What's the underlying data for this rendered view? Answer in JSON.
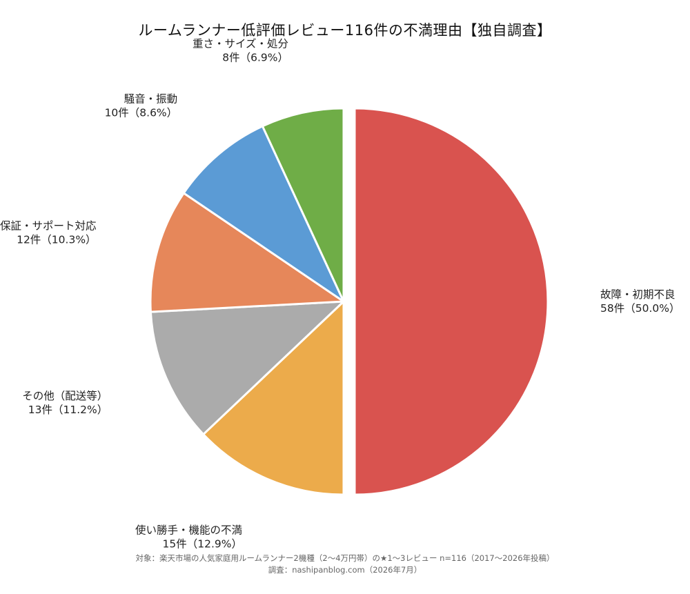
{
  "chart_data": {
    "type": "pie",
    "title": "ルームランナー低評価レビュー116件の不満理由【独自調査】",
    "total": 116,
    "slices": [
      {
        "category": "故障・初期不良",
        "value": 58,
        "percent": 50.0,
        "label_value": "58件（50.0%）",
        "color": "#d9534f",
        "exploded": true
      },
      {
        "category": "使い勝手・機能の不満",
        "value": 15,
        "percent": 12.9,
        "label_value": "15件（12.9%）",
        "color": "#ecab4b",
        "exploded": false
      },
      {
        "category": "その他（配送等）",
        "value": 13,
        "percent": 11.2,
        "label_value": "13件（11.2%）",
        "color": "#ababab",
        "exploded": false
      },
      {
        "category": "保証・サポート対応",
        "value": 12,
        "percent": 10.3,
        "label_value": "12件（10.3%）",
        "color": "#e6875a",
        "exploded": false
      },
      {
        "category": "騒音・振動",
        "value": 10,
        "percent": 8.6,
        "label_value": "10件（8.6%）",
        "color": "#5b9bd5",
        "exploded": false
      },
      {
        "category": "重さ・サイズ・処分",
        "value": 8,
        "percent": 6.9,
        "label_value": "8件（6.9%）",
        "color": "#6fad47",
        "exploded": false
      }
    ],
    "start_angle_deg": 0,
    "direction": "clockwise",
    "legend": "none"
  },
  "footnote": {
    "line1": "対象：楽天市場の人気家庭用ルームランナー2機種（2〜4万円帯）の★1〜3レビュー n=116（2017〜2026年投稿）",
    "line2": "調査：nashipanblog.com（2026年7月）"
  }
}
